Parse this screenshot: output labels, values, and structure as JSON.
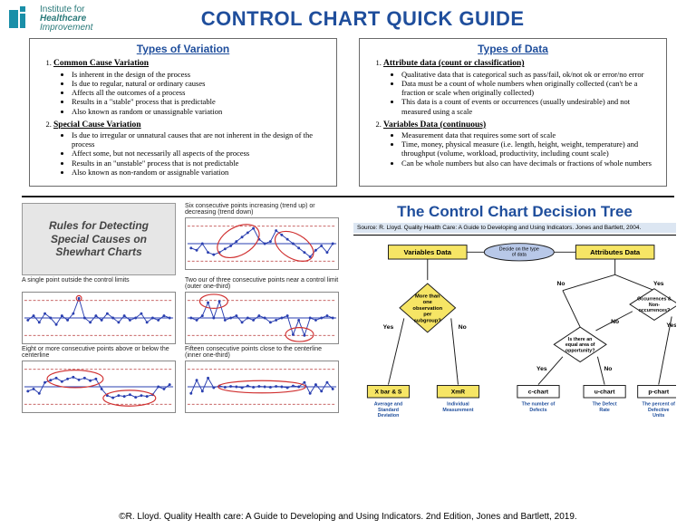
{
  "header": {
    "logo_text_line1": "Institute for",
    "logo_text_line2": "Healthcare",
    "logo_text_line3": "Improvement",
    "logo_color": "#1a8fa8",
    "title": "CONTROL CHART QUICK GUIDE",
    "title_color": "#1f4e9c"
  },
  "variation_panel": {
    "title": "Types of Variation",
    "items": [
      {
        "head": "Common Cause Variation",
        "bullets": [
          "Is inherent in the design of the process",
          "Is due to regular, natural or ordinary causes",
          "Affects all the outcomes of a process",
          "Results in a \"stable\" process that is predictable",
          "Also known as random or unassignable variation"
        ]
      },
      {
        "head": "Special Cause Variation",
        "bullets": [
          "Is due to irregular or unnatural causes that are not inherent in the design of the process",
          "Affect some, but not necessarily all aspects of the process",
          "Results in an \"unstable\" process that is not predictable",
          "Also known as non-random or assignable variation"
        ]
      }
    ]
  },
  "data_panel": {
    "title": "Types of Data",
    "items": [
      {
        "head": "Attribute data (count or classification)",
        "bullets": [
          "Qualitative data that is categorical such as pass/fail, ok/not ok or error/no error",
          "Data must be a count of whole numbers when originally collected (can't be a fraction or scale when originally collected)",
          "This data is a count of events or occurrences (usually undesirable) and not measured using a scale"
        ]
      },
      {
        "head": "Variables Data (continuous)",
        "bullets": [
          "Measurement data that requires some sort of scale",
          "Time, money, physical measure (i.e. length, height, weight, temperature) and throughput (volume, workload, productivity, including count scale)",
          "Can be whole numbers but also can have decimals or fractions of whole numbers"
        ]
      }
    ]
  },
  "rules": {
    "box_title": "Rules for Detecting Special Causes on Shewhart Charts",
    "charts": [
      {
        "caption": "Six consecutive points increasing (trend up) or decreasing (trend down)"
      },
      {
        "caption": "A single point outside the control limits"
      },
      {
        "caption": "Two our of three consecutive points near a control limit (outer one-third)"
      },
      {
        "caption": "Eight or more consecutive points above or below the centerline"
      },
      {
        "caption": "Fifteen consecutive points close to the centerline (inner one-third)"
      }
    ],
    "chart_style": {
      "line_color": "#2a3fb0",
      "marker_color": "#2a3fb0",
      "highlight_color": "#d03030",
      "grid_dash_color": "#c05050",
      "centerline_color": "#2a3fb0"
    }
  },
  "tree": {
    "title": "The Control Chart Decision Tree",
    "source": "Source: R. Lloyd. Quality Health Care: A Guide to Developing and Using Indicators. Jones and Bartlett, 2004.",
    "labels": {
      "variables": "Variables Data",
      "attributes": "Attributes Data",
      "decide": "Decide on the type of data",
      "more_than_one": "More than one observation per subgroup?",
      "occ_nonocc": "Occurrences & Non-occurrences?",
      "equal_area": "Is there an equal area of opportunity?",
      "yes": "Yes",
      "no": "No",
      "xbar_s": "X bar & S",
      "xbar_s_sub": "Average and Standard Deviation",
      "xmr": "XmR",
      "xmr_sub": "Individual Measurement",
      "c": "c-chart",
      "c_sub": "The number of Defects",
      "u": "u-chart",
      "u_sub": "The Defect Rate",
      "p": "p-chart",
      "p_sub": "The percent of Defective Units"
    },
    "colors": {
      "yellow_fill": "#f6e565",
      "blue_fill": "#b8c8e8",
      "border": "#1a1a1a",
      "sub_text": "#1f4e9c",
      "edge": "#1a1a1a"
    }
  },
  "citation": "©R. Lloyd. Quality Health care: A Guide to Developing and Using Indicators. 2nd Edition, Jones and Bartlett, 2019."
}
